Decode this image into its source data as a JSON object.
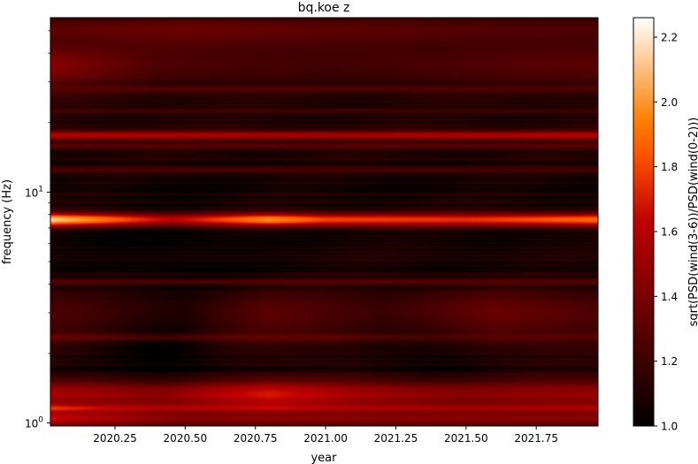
{
  "chart_data": {
    "type": "heatmap",
    "title": "bq.koe z",
    "xlabel": "year",
    "ylabel": "frequency (Hz)",
    "xlim": [
      2020.02,
      2021.97
    ],
    "ylim": [
      0.97,
      57
    ],
    "yscale": "log",
    "x_ticks": [
      {
        "value": 2020.25,
        "label": "2020.25"
      },
      {
        "value": 2020.5,
        "label": "2020.50"
      },
      {
        "value": 2020.75,
        "label": "2020.75"
      },
      {
        "value": 2021.0,
        "label": "2021.00"
      },
      {
        "value": 2021.25,
        "label": "2021.25"
      },
      {
        "value": 2021.5,
        "label": "2021.50"
      },
      {
        "value": 2021.75,
        "label": "2021.75"
      }
    ],
    "y_ticks": [
      {
        "value": 1,
        "base": "10",
        "exp": "0"
      },
      {
        "value": 10,
        "base": "10",
        "exp": "1"
      }
    ],
    "colorbar": {
      "label": "sqrt(PSD(wind(3-6))/PSD(wind(0-2)))",
      "range": [
        1.0,
        2.26
      ],
      "colormap": "gist_heat",
      "ticks": [
        "1.0",
        "1.2",
        "1.4",
        "1.6",
        "1.8",
        "2.0",
        "2.2"
      ],
      "tick_values": [
        1.0,
        1.2,
        1.4,
        1.6,
        1.8,
        2.0,
        2.2
      ]
    },
    "background_level": 1.08,
    "bands": [
      {
        "freq_hz": 7.6,
        "width_hz": 0.35,
        "levels": [
          [
            2020.02,
            2.15
          ],
          [
            2020.2,
            1.95
          ],
          [
            2020.45,
            1.65
          ],
          [
            2020.8,
            2.0
          ],
          [
            2021.0,
            1.8
          ],
          [
            2021.5,
            1.75
          ],
          [
            2021.97,
            1.9
          ]
        ]
      },
      {
        "freq_hz": 1.16,
        "width_hz": 0.035,
        "levels": [
          [
            2020.02,
            2.1
          ],
          [
            2020.2,
            1.85
          ],
          [
            2020.6,
            1.75
          ],
          [
            2021.0,
            1.7
          ],
          [
            2021.5,
            1.7
          ],
          [
            2021.97,
            1.75
          ]
        ]
      },
      {
        "freq_hz": 1.33,
        "width_hz": 0.15,
        "levels": [
          [
            2020.02,
            1.55
          ],
          [
            2020.4,
            1.5
          ],
          [
            2020.8,
            1.7
          ],
          [
            2021.1,
            1.55
          ],
          [
            2021.5,
            1.45
          ],
          [
            2021.97,
            1.5
          ]
        ]
      },
      {
        "freq_hz": 1.05,
        "width_hz": 0.06,
        "levels": [
          [
            2020.02,
            1.65
          ],
          [
            2020.5,
            1.45
          ],
          [
            2021.0,
            1.45
          ],
          [
            2021.97,
            1.45
          ]
        ]
      },
      {
        "freq_hz": 17.6,
        "width_hz": 0.6,
        "levels": [
          [
            2020.02,
            1.6
          ],
          [
            2021.0,
            1.55
          ],
          [
            2021.97,
            1.6
          ]
        ]
      },
      {
        "freq_hz": 15.9,
        "width_hz": 0.35,
        "levels": [
          [
            2020.02,
            1.3
          ],
          [
            2021.97,
            1.3
          ]
        ]
      },
      {
        "freq_hz": 36.0,
        "width_hz": 6.0,
        "levels": [
          [
            2020.02,
            1.45
          ],
          [
            2020.4,
            1.25
          ],
          [
            2021.0,
            1.2
          ],
          [
            2021.97,
            1.3
          ]
        ]
      },
      {
        "freq_hz": 50.0,
        "width_hz": 6.0,
        "levels": [
          [
            2020.02,
            1.3
          ],
          [
            2020.5,
            1.35
          ],
          [
            2021.0,
            1.3
          ],
          [
            2021.97,
            1.25
          ]
        ]
      },
      {
        "freq_hz": 3.0,
        "width_hz": 0.6,
        "levels": [
          [
            2020.02,
            1.25
          ],
          [
            2020.5,
            1.15
          ],
          [
            2020.8,
            1.3
          ],
          [
            2021.2,
            1.2
          ],
          [
            2021.6,
            1.35
          ],
          [
            2021.97,
            1.25
          ]
        ]
      },
      {
        "freq_hz": 2.35,
        "width_hz": 0.06,
        "levels": [
          [
            2020.02,
            1.35
          ],
          [
            2021.97,
            1.3
          ]
        ]
      },
      {
        "freq_hz": 4.1,
        "width_hz": 0.08,
        "levels": [
          [
            2020.02,
            1.3
          ],
          [
            2021.97,
            1.28
          ]
        ]
      },
      {
        "freq_hz": 12.5,
        "width_hz": 0.3,
        "levels": [
          [
            2020.02,
            1.25
          ],
          [
            2021.97,
            1.22
          ]
        ]
      },
      {
        "freq_hz": 28.0,
        "width_hz": 0.6,
        "levels": [
          [
            2020.02,
            1.28
          ],
          [
            2021.97,
            1.25
          ]
        ]
      },
      {
        "freq_hz": 22.5,
        "width_hz": 0.5,
        "levels": [
          [
            2020.02,
            1.22
          ],
          [
            2021.97,
            1.2
          ]
        ]
      }
    ],
    "dark_regions": [
      {
        "year": 2020.42,
        "freq_hz": 2.0,
        "year_spread": 0.13,
        "log_freq_spread": 0.12,
        "depth": 0.12
      },
      {
        "year": 2021.35,
        "freq_hz": 2.1,
        "year_spread": 0.15,
        "log_freq_spread": 0.1,
        "depth": 0.08
      },
      {
        "year": 2020.45,
        "freq_hz": 5.5,
        "year_spread": 0.2,
        "log_freq_spread": 0.15,
        "depth": 0.06
      }
    ],
    "grid": false,
    "legend": "none"
  }
}
